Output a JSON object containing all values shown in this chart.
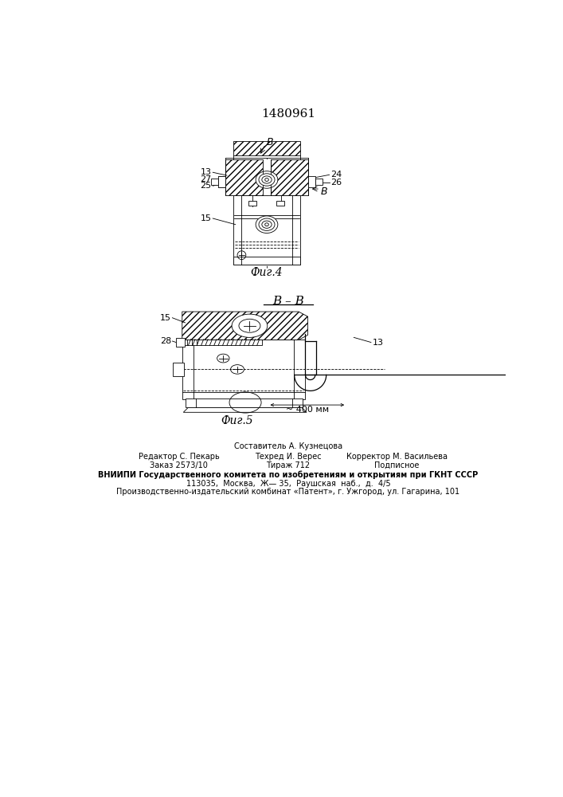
{
  "patent_number": "1480961",
  "background_color": "#ffffff",
  "line_color": "#000000",
  "fig4_label": "Фиг.4",
  "fig5_label": "Фиг.5",
  "section_label": "В – В",
  "footer_line0": "Составитель А. Кузнецова",
  "footer_line1a": "Редактор С. Пекарь",
  "footer_line1b": "Техред И. Верес",
  "footer_line1c": "Корректор М. Васильева",
  "footer_line2a": "Заказ 2573/10",
  "footer_line2b": "Тираж 712",
  "footer_line2c": "Подписное",
  "footer_line3": "ВНИИПИ Государственного комитета по изобретениям и открытиям при ГКНТ СССР",
  "footer_line4": "113035,  Москва,  Ж— 35,  Раушская  наб.,  д.  4/5",
  "footer_line5": "Производственно-издательский комбинат «Патент», г. Ужгород, ул. Гагарина, 101"
}
